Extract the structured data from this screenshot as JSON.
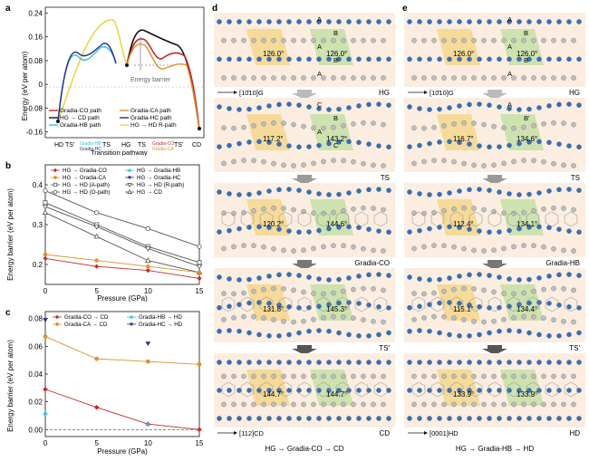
{
  "panel_labels": {
    "a": "a",
    "b": "b",
    "c": "c",
    "d": "d",
    "e": "e"
  },
  "panel_a": {
    "ylabel": "Energy (eV per atom)",
    "xlabel": "Transition pathway",
    "yticks": [
      "0.24",
      "0.16",
      "0.08",
      "0",
      "-0.08",
      "-0.16"
    ],
    "xticks": {
      "hd": "HD",
      "ts_prime": "TS'",
      "gradia_hb": "Gradia-HB",
      "gradia_hc": "Gradia-HC",
      "ts1": "TS",
      "hg": "HG",
      "ts2": "TS",
      "gradia_co": "Gradia-CO",
      "gradia_ca": "Gradia-CA",
      "ts_prime2": "TS'",
      "cd": "CD"
    },
    "annotation": "Energy barrier",
    "legend": [
      {
        "label": "Gradia-CO path",
        "color": "#c8282a"
      },
      {
        "label": "Gradia-CA path",
        "color": "#d9912d"
      },
      {
        "label": "HG → CD path",
        "color": "#111111"
      },
      {
        "label": "Gradia-HC path",
        "color": "#2a2a8c"
      },
      {
        "label": "Gradia-HB path",
        "color": "#29c3e0"
      },
      {
        "label": "HG → HD R-path",
        "color": "#e8d84a"
      }
    ],
    "chart_data": {
      "type": "line",
      "ylim": [
        -0.18,
        0.26
      ],
      "series": [
        {
          "name": "Gradia-CO path",
          "y": [
            0,
            0.06,
            0.1,
            0.16,
            0.19,
            0.17,
            0.12,
            0.08,
            -0.16
          ]
        },
        {
          "name": "HG → CD path",
          "y": [
            0,
            0.07,
            0.15,
            0.2,
            0.2,
            0.18,
            0.15,
            0.1,
            -0.16
          ]
        },
        {
          "name": "Gradia-HB path",
          "y": [
            -0.13,
            -0.02,
            0.06,
            0.1,
            0.13,
            0.06,
            0
          ]
        },
        {
          "name": "HG → HD R-path",
          "y": [
            -0.13,
            0.12,
            0.2,
            0.25,
            0.24,
            0.1,
            0
          ]
        }
      ]
    }
  },
  "panel_b": {
    "ylabel": "Energy barrier (eV per atom)",
    "xlabel": "Pressure (GPa)",
    "legend": [
      {
        "label": "HG → Gradia-CO",
        "color": "#c8282a",
        "marker": "diamond"
      },
      {
        "label": "HG → Gradia-HB",
        "color": "#29c3e0",
        "marker": "triangle-up"
      },
      {
        "label": "HG → Gradia-CA",
        "color": "#d9912d",
        "marker": "circle"
      },
      {
        "label": "HG → Gradia-HC",
        "color": "#2a2a8c",
        "marker": "triangle-down"
      },
      {
        "label": "HG → HD (A-path)",
        "color": "#555555",
        "marker": "square"
      },
      {
        "label": "HG → HD (R-path)",
        "color": "#555555",
        "marker": "triangle-down-open"
      },
      {
        "label": "HG → HD (O-path)",
        "color": "#555555",
        "marker": "circle-open"
      },
      {
        "label": "HG → CD",
        "color": "#555555",
        "marker": "triangle-up-open"
      }
    ],
    "chart_data": {
      "type": "line",
      "x": [
        0,
        5,
        10,
        15
      ],
      "xlim": [
        0,
        15
      ],
      "ylim": [
        0.15,
        0.45
      ],
      "yticks": [
        0.2,
        0.3,
        0.4
      ],
      "xticks": [
        0,
        5,
        10,
        15
      ],
      "series": [
        {
          "name": "HG → HD (O-path)",
          "y": [
            0.385,
            0.33,
            0.29,
            0.245
          ]
        },
        {
          "name": "HG → HD (A-path)",
          "y": [
            0.355,
            0.3,
            0.245,
            0.205
          ]
        },
        {
          "name": "HG → HD (R-path)",
          "y": [
            0.345,
            0.295,
            0.24,
            0.195
          ]
        },
        {
          "name": "HG → CD",
          "y": [
            0.33,
            0.27,
            0.21,
            0.18
          ]
        },
        {
          "name": "HG → Gradia-CA",
          "y": [
            0.225,
            0.21,
            0.195,
            0.18
          ]
        },
        {
          "name": "HG → Gradia-CO",
          "y": [
            0.215,
            0.195,
            0.185,
            0.165
          ]
        }
      ]
    }
  },
  "panel_c": {
    "ylabel": "Energy barrier (eV per atom)",
    "xlabel": "Pressure (GPa)",
    "legend": [
      {
        "label": "Gradia-CO → CD",
        "color": "#c8282a",
        "marker": "diamond"
      },
      {
        "label": "Gradia-HB → HD",
        "color": "#29c3e0",
        "marker": "triangle-up"
      },
      {
        "label": "Gradia-CA → CD",
        "color": "#d9912d",
        "marker": "circle"
      },
      {
        "label": "Gradia-HC → HD",
        "color": "#2a2a8c",
        "marker": "triangle-down"
      }
    ],
    "chart_data": {
      "type": "line",
      "xlim": [
        0,
        15
      ],
      "ylim": [
        -0.005,
        0.085
      ],
      "yticks": [
        0,
        0.02,
        0.04,
        0.06,
        0.08
      ],
      "xticks": [
        0,
        5,
        10,
        15
      ],
      "series": [
        {
          "name": "Gradia-CA → CD",
          "x": [
            0,
            5,
            10,
            15
          ],
          "y": [
            0.067,
            0.051,
            0.049,
            0.047
          ]
        },
        {
          "name": "Gradia-CO → CD",
          "x": [
            0,
            5,
            10,
            15
          ],
          "y": [
            0.029,
            0.016,
            0.004,
            0
          ]
        },
        {
          "name": "Gradia-HB → HD",
          "x": [
            0,
            10
          ],
          "y": [
            0.012,
            0.004
          ]
        },
        {
          "name": "Gradia-HC → HD",
          "x": [
            0,
            10
          ],
          "y": [
            0.079,
            0.062
          ]
        }
      ]
    }
  },
  "panel_d": {
    "rows": [
      {
        "name": "HG",
        "left_angle": "126.0°",
        "right_angle": "126.0°",
        "letters": [
          "A",
          "B",
          "A",
          "B",
          "A"
        ],
        "axis": "[10̄10]G"
      },
      {
        "name": "TS",
        "left_angle": "117.2°",
        "right_angle": "143.2°",
        "letters": [
          "C",
          "B",
          "A",
          "C"
        ]
      },
      {
        "name": "Gradia-CO",
        "left_angle": "120.2°",
        "right_angle": "144.6°"
      },
      {
        "name": "TS'",
        "left_angle": "131.8°",
        "right_angle": "145.3°"
      },
      {
        "name": "CD",
        "left_angle": "144.7°",
        "right_angle": "144.7°",
        "axis": "[112]CD"
      }
    ],
    "caption": "HG → Gradia-CO → CD"
  },
  "panel_e": {
    "rows": [
      {
        "name": "HG",
        "left_angle": "126.0°",
        "right_angle": "126.0°",
        "letters": [
          "A",
          "B",
          "A",
          "B",
          "A"
        ],
        "axis": "[10̄10]G"
      },
      {
        "name": "TS",
        "left_angle": "116.7°",
        "right_angle": "134.6°",
        "letters": [
          "A",
          "B'"
        ]
      },
      {
        "name": "Gradia-HB",
        "left_angle": "112.4°",
        "right_angle": "134.1°"
      },
      {
        "name": "TS'",
        "left_angle": "115.1°",
        "right_angle": "134.4°"
      },
      {
        "name": "HD",
        "left_angle": "133.9°",
        "right_angle": "133.9°",
        "axis": "[0001]HD"
      }
    ],
    "caption": "HG → Gradia-HB → HD"
  },
  "colors": {
    "bg_panel": "#fbeee0",
    "yellow": "#f2d27a",
    "green": "#b9dd9a",
    "atom_blue": "#2f6fc6",
    "atom_grey": "#bdbdbd"
  }
}
